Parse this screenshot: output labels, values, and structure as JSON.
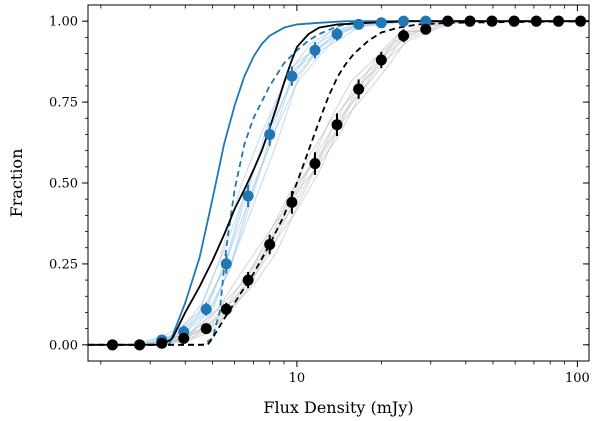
{
  "chart_data": {
    "type": "line",
    "xlabel": "Flux Density (mJy)",
    "ylabel": "Fraction",
    "xscale": "log",
    "xlim": [
      1.8,
      110
    ],
    "ylim": [
      -0.05,
      1.05
    ],
    "xticks": [
      {
        "value": 10,
        "label": "10"
      },
      {
        "value": 100,
        "label": "100"
      }
    ],
    "yticks": [
      {
        "value": 0.0,
        "label": "0.00"
      },
      {
        "value": 0.25,
        "label": "0.25"
      },
      {
        "value": 0.5,
        "label": "0.50"
      },
      {
        "value": 0.75,
        "label": "0.75"
      },
      {
        "value": 1.0,
        "label": "1.00"
      }
    ],
    "grid": false,
    "colors": {
      "blue": "#1f77b4",
      "black": "#000000",
      "light_blue": "#9ec8e8",
      "light_gray": "#bdbdbd"
    },
    "series": [
      {
        "style": "blue-solid",
        "x": [
          3.5,
          4.0,
          4.5,
          5.0,
          5.5,
          6.0,
          6.5,
          7.0,
          7.5,
          8.0,
          9.0,
          10.0,
          12.0,
          15.0,
          20.0,
          30.0,
          110.0
        ],
        "y": [
          0.0,
          0.13,
          0.27,
          0.45,
          0.62,
          0.74,
          0.83,
          0.89,
          0.93,
          0.955,
          0.98,
          0.99,
          0.995,
          1.0,
          1.0,
          1.0,
          1.0
        ]
      },
      {
        "style": "blue-dashed",
        "x": [
          1.8,
          4.6,
          5.0,
          5.3,
          5.6,
          6.0,
          6.5,
          7.0,
          8.0,
          9.0,
          10.0,
          11.0,
          12.0,
          14.0,
          16.0,
          20.0,
          110.0
        ],
        "y": [
          0.0,
          0.0,
          0.02,
          0.1,
          0.3,
          0.48,
          0.62,
          0.7,
          0.8,
          0.87,
          0.91,
          0.94,
          0.96,
          0.985,
          0.995,
          1.0,
          1.0
        ]
      },
      {
        "style": "black-solid",
        "x": [
          1.8,
          3.3,
          3.6,
          4.0,
          4.5,
          5.0,
          5.5,
          6.0,
          6.5,
          7.0,
          7.5,
          8.0,
          8.5,
          9.0,
          9.5,
          10.0,
          11.0,
          12.0,
          14.0,
          18.0,
          25.0,
          110.0
        ],
        "y": [
          0.0,
          0.0,
          0.02,
          0.1,
          0.18,
          0.26,
          0.34,
          0.42,
          0.48,
          0.54,
          0.6,
          0.67,
          0.74,
          0.81,
          0.87,
          0.92,
          0.96,
          0.98,
          0.99,
          0.995,
          1.0,
          1.0
        ]
      },
      {
        "style": "black-dashed",
        "x": [
          1.8,
          4.8,
          5.0,
          5.5,
          6.0,
          7.0,
          8.0,
          9.0,
          10.0,
          11.0,
          12.0,
          13.0,
          14.0,
          15.0,
          16.0,
          18.0,
          20.0,
          23.0,
          27.0,
          35.0,
          110.0
        ],
        "y": [
          0.0,
          0.0,
          0.02,
          0.08,
          0.13,
          0.22,
          0.31,
          0.4,
          0.5,
          0.6,
          0.69,
          0.77,
          0.83,
          0.87,
          0.9,
          0.94,
          0.965,
          0.98,
          0.99,
          0.995,
          1.0
        ]
      }
    ],
    "points": [
      {
        "style": "blue",
        "x": [
          2.2,
          2.75,
          3.3,
          3.95,
          4.75,
          5.6,
          6.7,
          8.0,
          9.6,
          11.6,
          13.9,
          16.6,
          20.0,
          24.0,
          28.8,
          34.5,
          41.4,
          49.6,
          59.5,
          71.4,
          85.6,
          102.7
        ],
        "y": [
          0.0,
          0.0,
          0.015,
          0.04,
          0.11,
          0.25,
          0.46,
          0.65,
          0.83,
          0.91,
          0.96,
          0.99,
          0.995,
          1.0,
          1.0,
          1.0,
          1.0,
          1.0,
          1.0,
          1.0,
          1.0,
          1.0
        ],
        "err": [
          0,
          0,
          0.01,
          0.02,
          0.02,
          0.03,
          0.035,
          0.035,
          0.03,
          0.025,
          0.02,
          0.01,
          0.005,
          0,
          0,
          0,
          0,
          0,
          0,
          0,
          0,
          0
        ]
      },
      {
        "style": "black",
        "x": [
          2.2,
          2.75,
          3.3,
          3.95,
          4.75,
          5.6,
          6.7,
          8.0,
          9.6,
          11.6,
          13.9,
          16.6,
          20.0,
          24.0,
          28.8,
          34.5,
          41.4,
          49.6,
          59.5,
          71.4,
          85.6,
          102.7
        ],
        "y": [
          0.0,
          0.0,
          0.005,
          0.02,
          0.05,
          0.11,
          0.2,
          0.31,
          0.44,
          0.56,
          0.68,
          0.79,
          0.88,
          0.955,
          0.975,
          1.0,
          1.0,
          1.0,
          1.0,
          1.0,
          1.0,
          1.0
        ],
        "err": [
          0,
          0,
          0.005,
          0.01,
          0.015,
          0.02,
          0.025,
          0.03,
          0.035,
          0.035,
          0.035,
          0.03,
          0.025,
          0.02,
          0.015,
          0.01,
          0,
          0,
          0,
          0,
          0,
          0
        ]
      }
    ]
  }
}
